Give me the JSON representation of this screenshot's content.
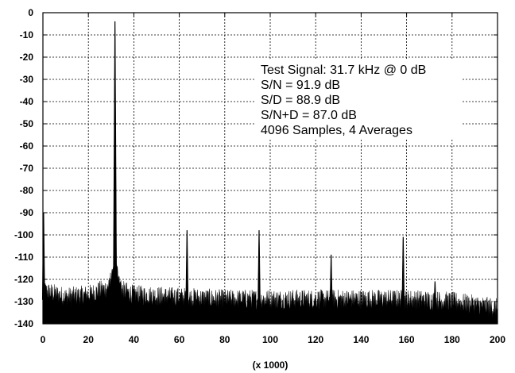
{
  "chart_data": {
    "type": "area",
    "xlabel": "(x 1000)",
    "ylabel": "",
    "title": "",
    "xlim": [
      0,
      200
    ],
    "ylim": [
      -140,
      0
    ],
    "xticks": [
      0,
      20,
      40,
      60,
      80,
      100,
      120,
      140,
      160,
      180,
      200
    ],
    "yticks": [
      0,
      -10,
      -20,
      -30,
      -40,
      -50,
      -60,
      -70,
      -80,
      -90,
      -100,
      -110,
      -120,
      -130,
      -140
    ],
    "grid": true,
    "annotations": [
      "Test Signal:  31.7 kHz @ 0 dB",
      "S/N = 91.9 dB",
      "S/D = 88.9 dB",
      "S/N+D = 87.0 dB",
      "4096 Samples, 4 Averages"
    ],
    "noise_floor": [
      {
        "x": 0,
        "y": -125
      },
      {
        "x": 10,
        "y": -128
      },
      {
        "x": 20,
        "y": -127
      },
      {
        "x": 28,
        "y": -124
      },
      {
        "x": 35,
        "y": -125
      },
      {
        "x": 40,
        "y": -127
      },
      {
        "x": 60,
        "y": -128
      },
      {
        "x": 80,
        "y": -129
      },
      {
        "x": 100,
        "y": -129
      },
      {
        "x": 120,
        "y": -129
      },
      {
        "x": 140,
        "y": -129
      },
      {
        "x": 160,
        "y": -129
      },
      {
        "x": 180,
        "y": -130
      },
      {
        "x": 200,
        "y": -133
      }
    ],
    "peaks": [
      {
        "x": 0.3,
        "y": -90
      },
      {
        "x": 31.7,
        "y": -4
      },
      {
        "x": 63.4,
        "y": -98
      },
      {
        "x": 95.1,
        "y": -98
      },
      {
        "x": 126.8,
        "y": -109
      },
      {
        "x": 158.5,
        "y": -101
      },
      {
        "x": 172.5,
        "y": -121
      }
    ]
  }
}
